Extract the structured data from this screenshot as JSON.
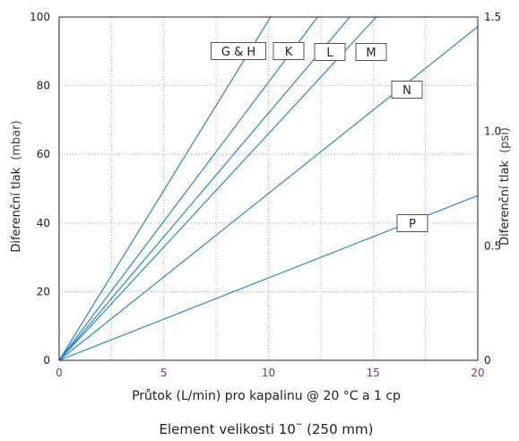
{
  "chart_data": {
    "type": "line",
    "x": {
      "label": "Průtok (L/min) pro kapalinu @ 20 °C a 1 cp",
      "min": 0,
      "max": 20,
      "ticks": [
        "0",
        "5",
        "10",
        "15",
        "20"
      ]
    },
    "y": {
      "label": "Diferenční tlak",
      "unit": "(mbar)",
      "min": 0,
      "max": 100,
      "ticks": [
        "0",
        "20",
        "40",
        "60",
        "80",
        "100"
      ]
    },
    "y2": {
      "label": "Diferenční tlak",
      "unit": "(psi)",
      "min": 0,
      "max": 1.5,
      "ticks": [
        "0",
        "0.5",
        "1.0",
        "1.5"
      ]
    },
    "grid": true,
    "series": [
      {
        "name": "G & H",
        "slope": 9.9
      },
      {
        "name": "K",
        "slope": 8.1
      },
      {
        "name": "L",
        "slope": 7.2
      },
      {
        "name": "M",
        "slope": 6.6
      },
      {
        "name": "N",
        "slope": 4.86
      },
      {
        "name": "P",
        "slope": 2.4
      }
    ],
    "caption": "Element velikosti 10¨ (250 mm)",
    "colors": {
      "series": "#2a86c2",
      "x_tick_labels": "#6a3d8f",
      "text": "#222222",
      "grid": "#999999"
    }
  }
}
